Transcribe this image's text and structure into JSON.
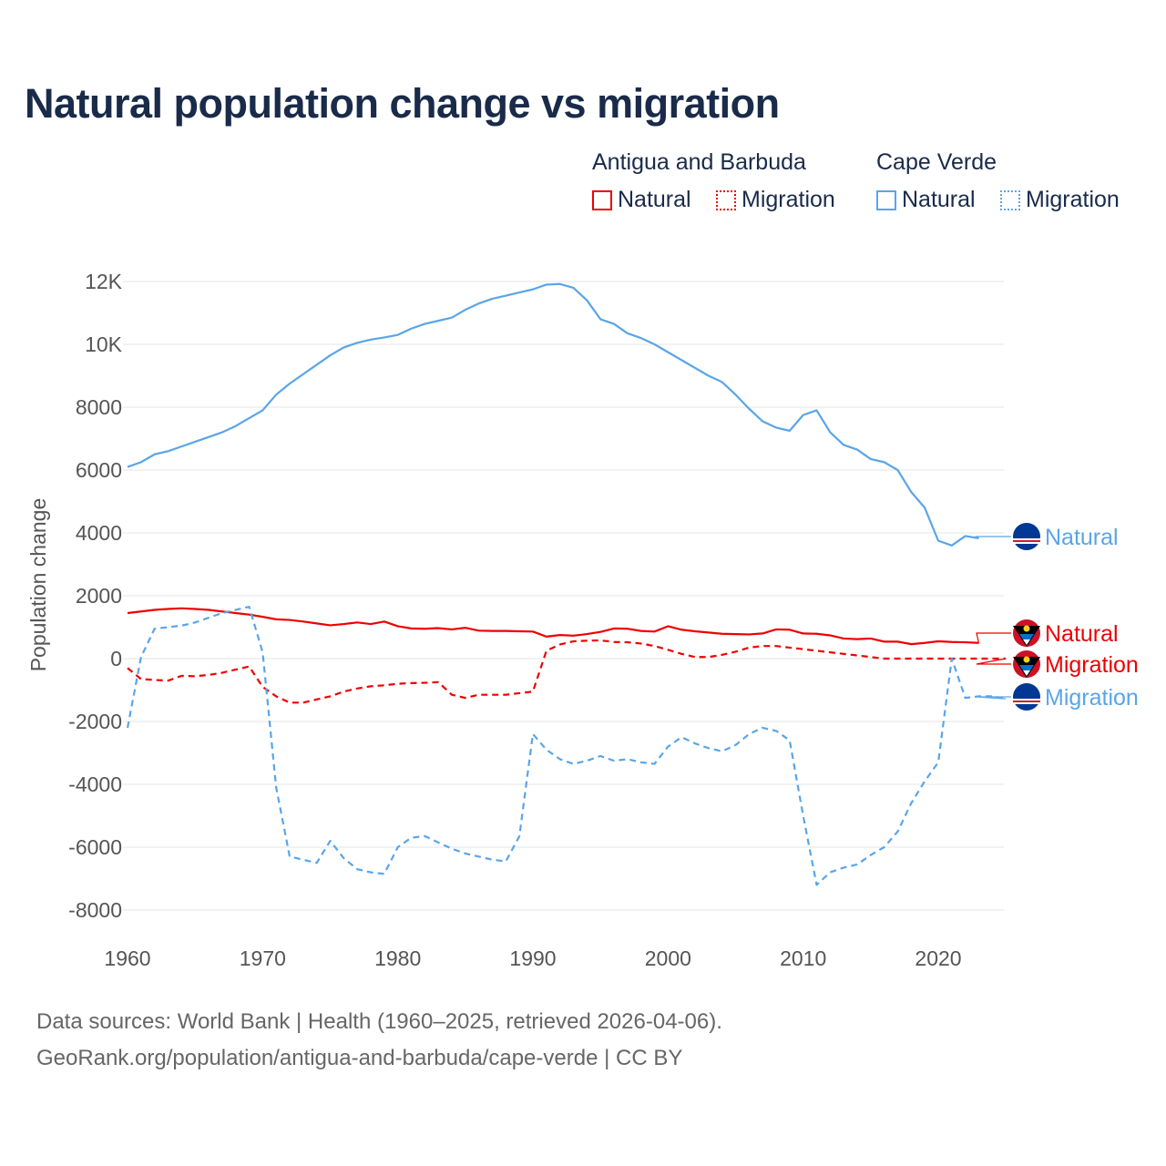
{
  "title": "Natural population change vs migration",
  "legend": {
    "groups": [
      {
        "name": "Antigua and Barbuda",
        "items": [
          {
            "label": "Natural",
            "style": "solid",
            "color": "#ee0000"
          },
          {
            "label": "Migration",
            "style": "dotted",
            "color": "#ee0000"
          }
        ]
      },
      {
        "name": "Cape Verde",
        "items": [
          {
            "label": "Natural",
            "style": "solid",
            "color": "#5aa5e8"
          },
          {
            "label": "Migration",
            "style": "dotted",
            "color": "#5aa5e8"
          }
        ]
      }
    ]
  },
  "footer": {
    "line1": "Data sources: World Bank | Health (1960–2025, retrieved 2026-04-06).",
    "line2": "GeoRank.org/population/antigua-and-barbuda/cape-verde | CC BY"
  },
  "chart_data": {
    "type": "line",
    "title": "Natural population change vs migration",
    "xlabel": "",
    "ylabel": "Population change",
    "xlim": [
      1960,
      2025
    ],
    "ylim": [
      -8000,
      12000
    ],
    "xticks": [
      "1960",
      "1970",
      "1980",
      "1990",
      "2000",
      "2010",
      "2020"
    ],
    "yticks": [
      "12K",
      "10K",
      "8000",
      "6000",
      "4000",
      "2000",
      "0",
      "-2000",
      "-4000",
      "-6000",
      "-8000"
    ],
    "grid": true,
    "x_start": 1960,
    "series": [
      {
        "name": "Cape Verde Natural",
        "end_label": "Natural",
        "color": "#5aa5e8",
        "dash": false,
        "flag": "cape-verde",
        "values": [
          6100,
          6250,
          6500,
          6600,
          6750,
          6900,
          7050,
          7200,
          7400,
          7650,
          7900,
          8400,
          8750,
          9050,
          9350,
          9650,
          9900,
          10050,
          10150,
          10220,
          10300,
          10500,
          10650,
          10750,
          10850,
          11100,
          11300,
          11450,
          11550,
          11650,
          11750,
          11900,
          11920,
          11800,
          11400,
          10800,
          10650,
          10350,
          10200,
          10000,
          9750,
          9500,
          9250,
          9000,
          8800,
          8400,
          7950,
          7550,
          7350,
          7250,
          7750,
          7900,
          7200,
          6800,
          6650,
          6350,
          6250,
          6000,
          5300,
          4800,
          3750,
          3600,
          3900,
          3830
        ]
      },
      {
        "name": "Antigua and Barbuda Natural",
        "end_label": "Natural",
        "color": "#ee0000",
        "dash": false,
        "flag": "antigua",
        "values": [
          1450,
          1500,
          1550,
          1580,
          1600,
          1580,
          1550,
          1500,
          1450,
          1400,
          1330,
          1250,
          1230,
          1180,
          1120,
          1060,
          1100,
          1150,
          1100,
          1180,
          1030,
          960,
          950,
          970,
          930,
          980,
          890,
          880,
          880,
          870,
          860,
          700,
          750,
          730,
          780,
          850,
          960,
          950,
          880,
          860,
          1030,
          920,
          870,
          830,
          790,
          780,
          770,
          800,
          930,
          920,
          800,
          790,
          740,
          640,
          620,
          640,
          540,
          540,
          460,
          500,
          550,
          530,
          520,
          500
        ]
      },
      {
        "name": "Antigua and Barbuda Migration",
        "end_label": "Migration",
        "color": "#ee0000",
        "dash": true,
        "flag": "antigua",
        "values": [
          -300,
          -650,
          -680,
          -700,
          -550,
          -560,
          -520,
          -450,
          -350,
          -250,
          -900,
          -1200,
          -1400,
          -1400,
          -1300,
          -1200,
          -1050,
          -950,
          -880,
          -850,
          -800,
          -780,
          -770,
          -750,
          -1150,
          -1250,
          -1150,
          -1150,
          -1150,
          -1100,
          -1050,
          250,
          450,
          550,
          570,
          580,
          530,
          520,
          480,
          400,
          280,
          150,
          50,
          50,
          120,
          220,
          350,
          400,
          400,
          350,
          300,
          250,
          200,
          150,
          100,
          50,
          0,
          0,
          0,
          0,
          0,
          0,
          0,
          0,
          0,
          0
        ]
      },
      {
        "name": "Cape Verde Migration",
        "end_label": "Migration",
        "color": "#5aa5e8",
        "dash": true,
        "flag": "cape-verde",
        "values": [
          -2200,
          50,
          950,
          1000,
          1050,
          1150,
          1300,
          1450,
          1550,
          1650,
          200,
          -4100,
          -6300,
          -6400,
          -6500,
          -5800,
          -6350,
          -6700,
          -6800,
          -6850,
          -6000,
          -5700,
          -5650,
          -5850,
          -6050,
          -6200,
          -6300,
          -6400,
          -6450,
          -5650,
          -2400,
          -2900,
          -3200,
          -3350,
          -3250,
          -3100,
          -3250,
          -3200,
          -3300,
          -3350,
          -2800,
          -2500,
          -2700,
          -2850,
          -2950,
          -2750,
          -2400,
          -2200,
          -2300,
          -2600,
          -5000,
          -7200,
          -6800,
          -6650,
          -6550,
          -6250,
          -6000,
          -5500,
          -4600,
          -3900,
          -3300,
          0,
          -1250,
          -1200,
          -1200,
          -1280
        ]
      }
    ]
  }
}
